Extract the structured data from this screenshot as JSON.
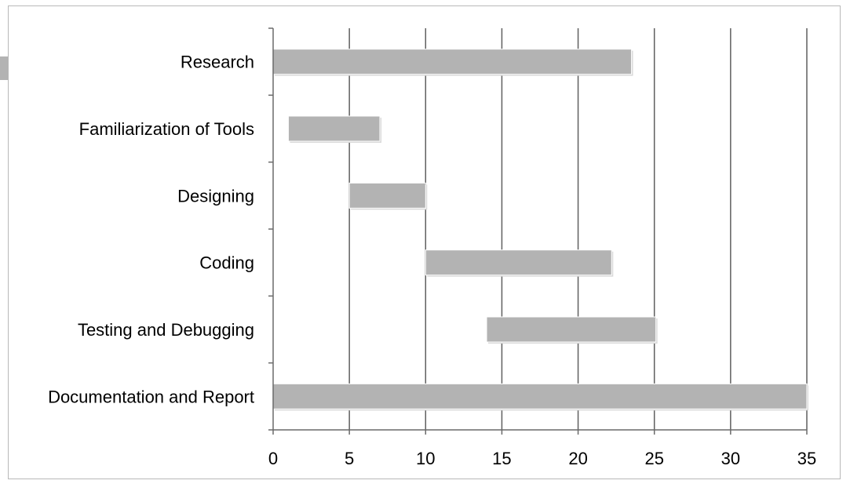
{
  "chart_data": {
    "type": "bar",
    "orientation": "horizontal",
    "stacked": "floating",
    "categories": [
      "Research",
      "Familiarization of Tools",
      "Designing",
      "Coding",
      "Testing and Debugging",
      "Documentation and Report"
    ],
    "series": [
      {
        "start": [
          0,
          1,
          5,
          10,
          14,
          0
        ],
        "end": [
          23.5,
          7,
          10,
          22.2,
          25.1,
          35
        ]
      }
    ],
    "title": "",
    "xlabel": "",
    "ylabel": "",
    "xlim": [
      0,
      35
    ],
    "x_ticks": [
      "0",
      "5",
      "10",
      "15",
      "20",
      "25",
      "30",
      "35"
    ],
    "grid": "vertical",
    "legend": "none",
    "bar_color": "#b3b3b3",
    "grid_color": "#5f5f5f"
  }
}
